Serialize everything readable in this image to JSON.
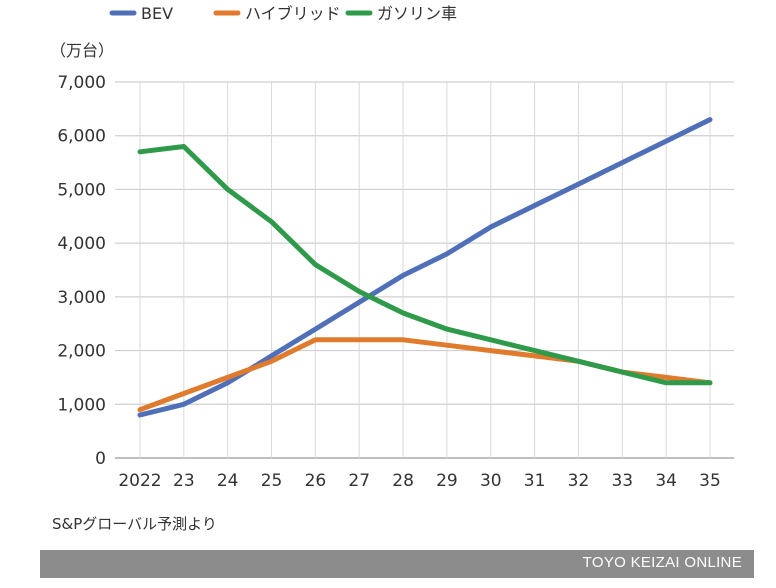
{
  "chart_data": {
    "type": "line",
    "unit": "（万台）",
    "x": [
      "2022",
      "23",
      "24",
      "25",
      "26",
      "27",
      "28",
      "29",
      "30",
      "31",
      "32",
      "33",
      "34",
      "35"
    ],
    "ylim": [
      0,
      7000
    ],
    "yticks": [
      "0",
      "1,000",
      "2,000",
      "3,000",
      "4,000",
      "5,000",
      "6,000",
      "7,000"
    ],
    "grid": true,
    "legend_position": "top",
    "series": [
      {
        "name": "BEV",
        "color": "#4f6fb8",
        "values": [
          800,
          1000,
          1400,
          1900,
          2400,
          2900,
          3400,
          3800,
          4300,
          4700,
          5100,
          5500,
          5900,
          6300
        ]
      },
      {
        "name": "ハイブリッド",
        "color": "#e07b2e",
        "values": [
          900,
          1200,
          1500,
          1800,
          2200,
          2200,
          2200,
          2100,
          2000,
          1900,
          1800,
          1600,
          1500,
          1400
        ]
      },
      {
        "name": "ガソリン車",
        "color": "#2e9a4a",
        "values": [
          5700,
          5800,
          5000,
          4400,
          3600,
          3100,
          2700,
          2400,
          2200,
          2000,
          1800,
          1600,
          1400,
          1400
        ]
      }
    ]
  },
  "source": "S&Pグローバル予測より",
  "footer": "TOYO KEIZAI ONLINE"
}
